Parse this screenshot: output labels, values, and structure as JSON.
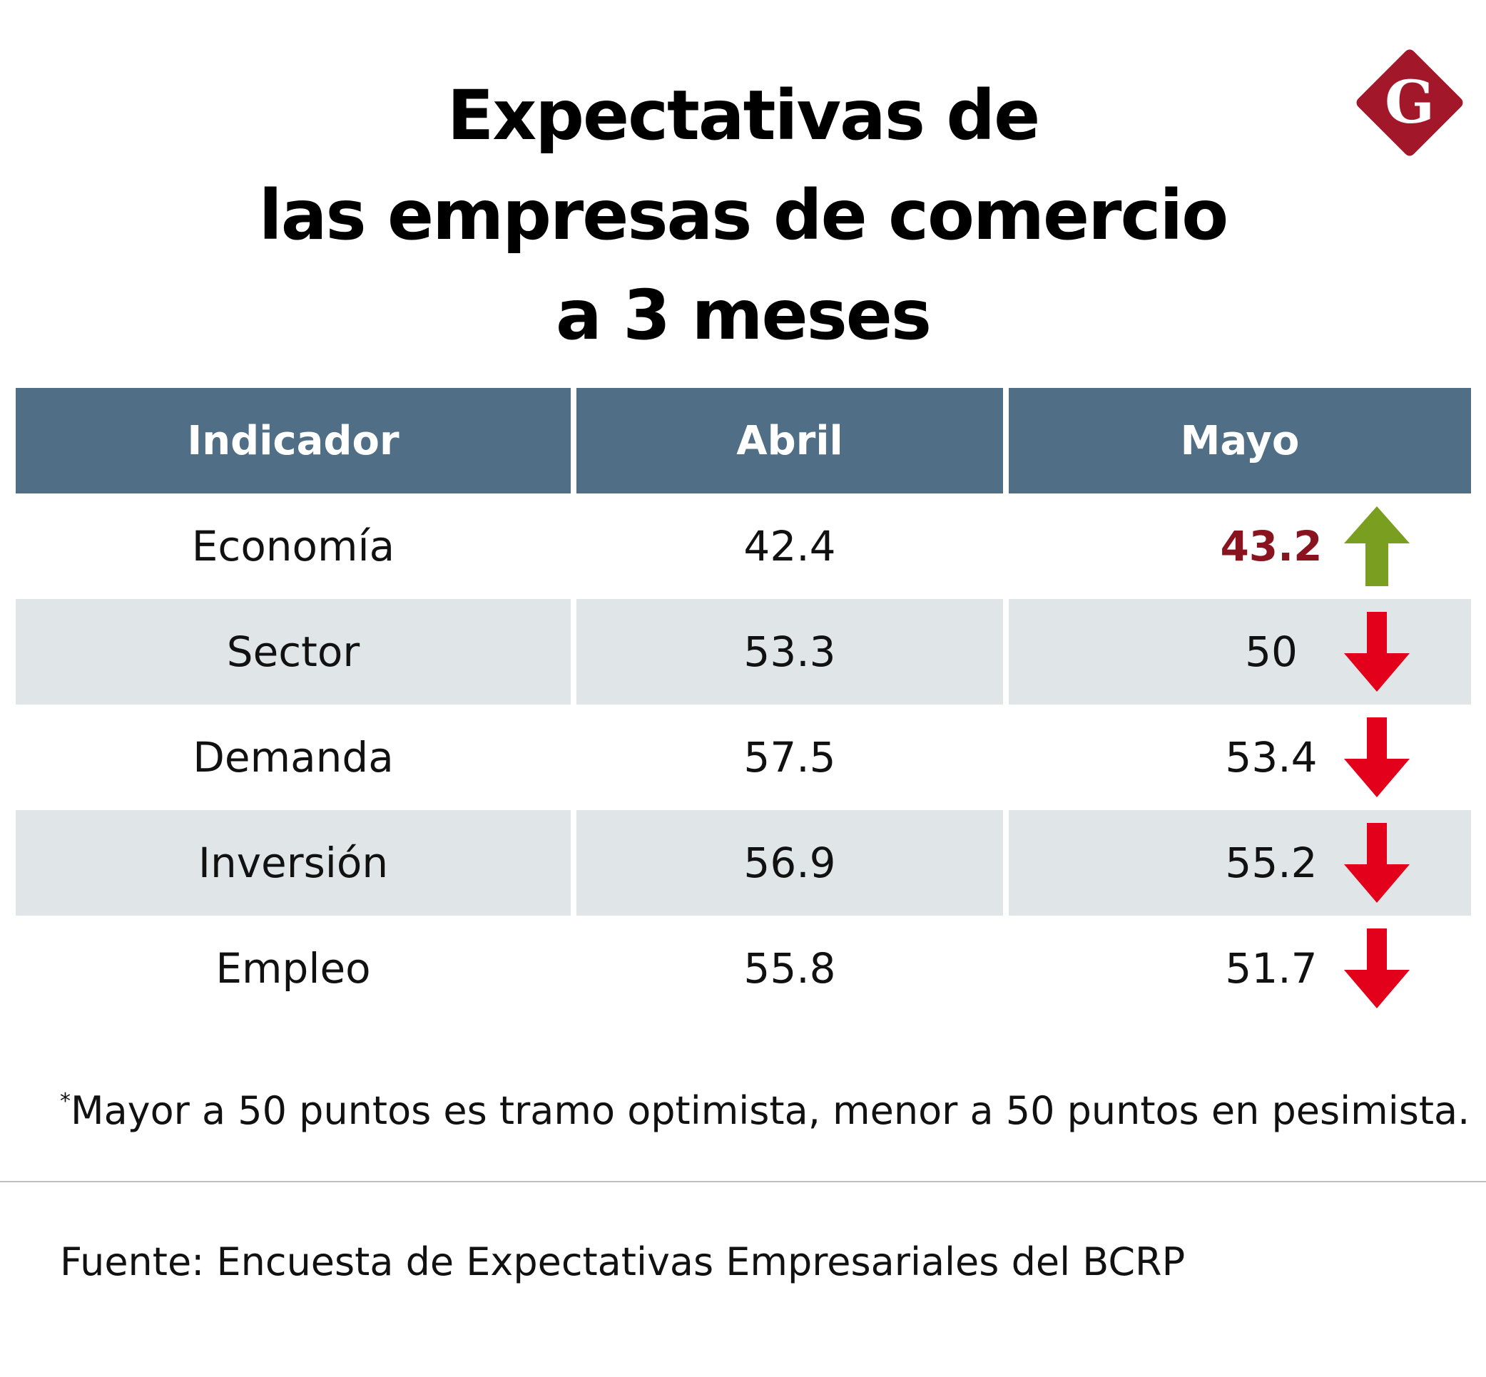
{
  "title": {
    "line1": "Expectativas de",
    "line2": "las empresas de comercio",
    "line3": "a 3 meses"
  },
  "logo": {
    "letter": "G",
    "icon": "diamond-g-logo-icon",
    "color": "#a3172b"
  },
  "chart_data": {
    "type": "table",
    "columns": [
      "Indicador",
      "Abril",
      "Mayo"
    ],
    "rows": [
      {
        "indicador": "Economía",
        "abril": "42.4",
        "mayo": "43.2",
        "trend": "up",
        "trend_icon": "arrow-up-icon",
        "trend_color": "#7a9e1f",
        "highlight": true
      },
      {
        "indicador": "Sector",
        "abril": "53.3",
        "mayo": "50",
        "trend": "down",
        "trend_icon": "arrow-down-icon",
        "trend_color": "#e2001a",
        "highlight": false
      },
      {
        "indicador": "Demanda",
        "abril": "57.5",
        "mayo": "53.4",
        "trend": "down",
        "trend_icon": "arrow-down-icon",
        "trend_color": "#e2001a",
        "highlight": false
      },
      {
        "indicador": "Inversión",
        "abril": "56.9",
        "mayo": "55.2",
        "trend": "down",
        "trend_icon": "arrow-down-icon",
        "trend_color": "#e2001a",
        "highlight": false
      },
      {
        "indicador": "Empleo",
        "abril": "55.8",
        "mayo": "51.7",
        "trend": "down",
        "trend_icon": "arrow-down-icon",
        "trend_color": "#e2001a",
        "highlight": false
      }
    ],
    "header_color": "#506e86",
    "stripe_color": "#e0e5e8",
    "highlight_color": "#8a1320"
  },
  "note": {
    "marker": "*",
    "text": "Mayor a 50 puntos es tramo optimista, menor a 50 puntos en pesimista."
  },
  "source": "Fuente: Encuesta de Expectativas Empresariales del BCRP"
}
